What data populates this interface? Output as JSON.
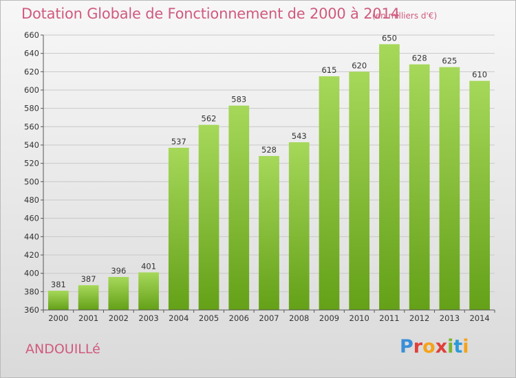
{
  "header": {
    "title": "Dotation Globale de Fonctionnement de 2000 à 2014",
    "unit": "(en milliers d'€)"
  },
  "footer": {
    "commune": "ANDOUILLé",
    "logo_letters": [
      "P",
      "r",
      "o",
      "x",
      "i",
      "t",
      "i"
    ],
    "logo_colors": [
      "#3a8fd8",
      "#e0403a",
      "#f5a21b",
      "#e0403a",
      "#7cb62f",
      "#2d9ad8",
      "#f5a21b"
    ]
  },
  "colors": {
    "bar_light": "#a6d85a",
    "bar_dark": "#64a018",
    "grid": "#c8c8c8",
    "accent": "#d05a7e"
  },
  "chart_data": {
    "type": "bar",
    "title": "Dotation Globale de Fonctionnement de 2000 à 2014",
    "xlabel": "",
    "ylabel": "",
    "categories": [
      "2000",
      "2001",
      "2002",
      "2003",
      "2004",
      "2005",
      "2006",
      "2007",
      "2008",
      "2009",
      "2010",
      "2011",
      "2012",
      "2013",
      "2014"
    ],
    "values": [
      381,
      387,
      396,
      401,
      537,
      562,
      583,
      528,
      543,
      615,
      620,
      650,
      628,
      625,
      610
    ],
    "ylim": [
      360,
      660
    ],
    "yticks": [
      360,
      380,
      400,
      420,
      440,
      460,
      480,
      500,
      520,
      540,
      560,
      580,
      600,
      620,
      640,
      660
    ],
    "grid": true,
    "data_labels": true
  }
}
